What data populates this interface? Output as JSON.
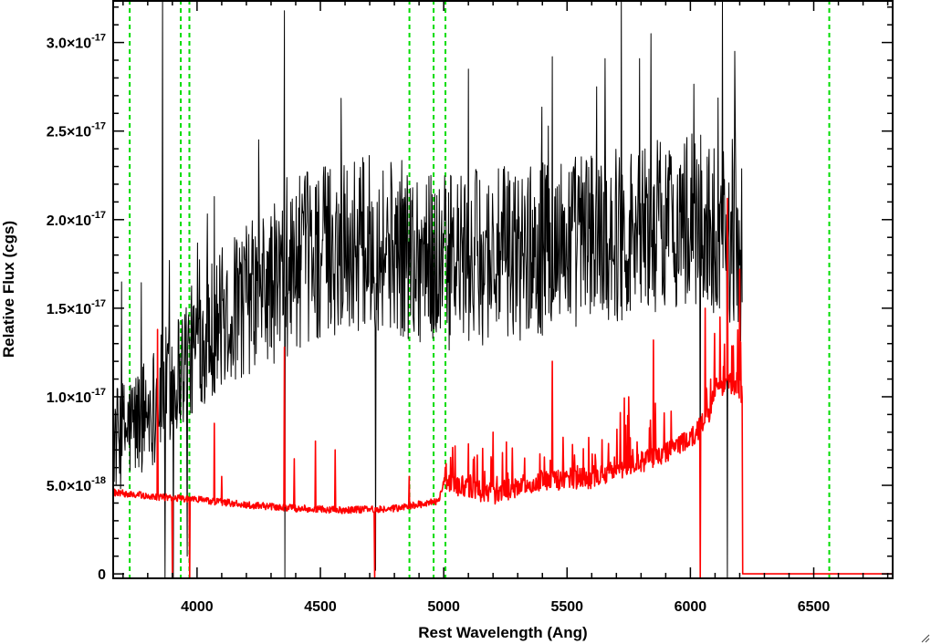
{
  "chart_data": {
    "type": "line",
    "xlabel": "Rest Wavelength (Ang)",
    "ylabel": "Relative Flux (cgs)",
    "xlim": [
      3660,
      6820
    ],
    "ylim": [
      -2.5e-19,
      3.24e-17
    ],
    "x_ticks": [
      4000,
      4500,
      5000,
      5500,
      6000,
      6500
    ],
    "x_tick_labels": [
      "4000",
      "4500",
      "5000",
      "5500",
      "6000",
      "6500"
    ],
    "y_ticks": [
      {
        "value": 0,
        "mant": "0",
        "exp": ""
      },
      {
        "value": 5e-18,
        "mant": "5.0×10",
        "exp": "-18"
      },
      {
        "value": 1e-17,
        "mant": "1.0×10",
        "exp": "-17"
      },
      {
        "value": 1.5e-17,
        "mant": "1.5×10",
        "exp": "-17"
      },
      {
        "value": 2e-17,
        "mant": "2.0×10",
        "exp": "-17"
      },
      {
        "value": 2.5e-17,
        "mant": "2.5×10",
        "exp": "-17"
      },
      {
        "value": 3e-17,
        "mant": "3.0×10",
        "exp": "-17"
      }
    ],
    "grid": false,
    "colors": {
      "observed": "#000000",
      "model": "#ff0000",
      "lines": "#00dd00"
    },
    "vertical_lines_x": [
      3727,
      3934,
      3969,
      4861,
      4959,
      5007,
      6563
    ],
    "series": [
      {
        "key": "observed",
        "color": "#000000",
        "x_start": 3660,
        "x_end": 6210,
        "continuum_x": [
          3660,
          3750,
          3850,
          3950,
          4050,
          4200,
          4300,
          4400,
          4500,
          4600,
          4700,
          4800,
          4900,
          5000,
          5100,
          5200,
          5300,
          5400,
          5500,
          5600,
          5700,
          5800,
          5900,
          6000,
          6100,
          6150,
          6210
        ],
        "continuum_y": [
          7.5e-18,
          8.5e-18,
          1e-17,
          1.2e-17,
          1.38e-17,
          1.55e-17,
          1.62e-17,
          1.75e-17,
          1.82e-17,
          1.85e-17,
          1.87e-17,
          1.85e-17,
          1.8e-17,
          1.75e-17,
          1.78e-17,
          1.8e-17,
          1.8e-17,
          1.85e-17,
          1.88e-17,
          1.9e-17,
          1.92e-17,
          1.95e-17,
          1.98e-17,
          2e-17,
          1.95e-17,
          1.9e-17,
          1.8e-17
        ],
        "spikes": [
          {
            "x": 3860,
            "y": 3.3e-17
          },
          {
            "x": 3870,
            "y": -3e-19
          },
          {
            "x": 3905,
            "y": -2e-19
          },
          {
            "x": 3960,
            "y": 1e-18
          },
          {
            "x": 4070,
            "y": 2.13e-17
          },
          {
            "x": 4355,
            "y": 3.18e-17
          },
          {
            "x": 4357,
            "y": -2e-19
          },
          {
            "x": 4725,
            "y": 2e-19
          },
          {
            "x": 5100,
            "y": 2.85e-17
          },
          {
            "x": 5440,
            "y": 2.92e-17
          },
          {
            "x": 5620,
            "y": 2.75e-17
          },
          {
            "x": 5720,
            "y": 3.25e-17
          },
          {
            "x": 5840,
            "y": 3.05e-17
          },
          {
            "x": 6040,
            "y": 1e-18
          },
          {
            "x": 6130,
            "y": 3.3e-17
          },
          {
            "x": 6150,
            "y": -2e-19
          },
          {
            "x": 6180,
            "y": 2.95e-17
          }
        ]
      },
      {
        "key": "model",
        "color": "#ff0000",
        "x_start": 3660,
        "x_end": 6820,
        "continuum_x": [
          3660,
          3800,
          4000,
          4200,
          4400,
          4600,
          4800,
          4980,
          5000,
          5200,
          5400,
          5600,
          5800,
          5900,
          6000,
          6080,
          6100,
          6150,
          6200,
          6210,
          6212,
          6820
        ],
        "continuum_y": [
          4.6e-18,
          4.4e-18,
          4.2e-18,
          3.9e-18,
          3.7e-18,
          3.6e-18,
          3.7e-18,
          4.1e-18,
          5.2e-18,
          4.5e-18,
          5.3e-18,
          5.4e-18,
          6.3e-18,
          6.8e-18,
          7.6e-18,
          9e-18,
          1.05e-17,
          1.08e-17,
          1.05e-17,
          1e-17,
          0.0,
          0.0
        ],
        "spikes": [
          {
            "x": 3840,
            "y": 1.38e-17
          },
          {
            "x": 3900,
            "y": -3e-19
          },
          {
            "x": 3970,
            "y": -3e-19
          },
          {
            "x": 4070,
            "y": 8.5e-18
          },
          {
            "x": 4101,
            "y": 5.5e-18
          },
          {
            "x": 4355,
            "y": 1.28e-17
          },
          {
            "x": 4395,
            "y": 6.5e-18
          },
          {
            "x": 4480,
            "y": 7.5e-18
          },
          {
            "x": 4560,
            "y": 7e-18
          },
          {
            "x": 4720,
            "y": -2e-19
          },
          {
            "x": 4861,
            "y": 5.5e-18
          },
          {
            "x": 5007,
            "y": 6e-18
          },
          {
            "x": 5200,
            "y": 8e-18
          },
          {
            "x": 5440,
            "y": 1.2e-17
          },
          {
            "x": 5750,
            "y": 1e-17
          },
          {
            "x": 5850,
            "y": 1.32e-17
          },
          {
            "x": 6040,
            "y": -2e-19
          },
          {
            "x": 6060,
            "y": 1.5e-17
          },
          {
            "x": 6120,
            "y": 1.45e-17
          },
          {
            "x": 6150,
            "y": 2.12e-17
          },
          {
            "x": 6200,
            "y": 1.72e-17
          }
        ]
      }
    ]
  }
}
